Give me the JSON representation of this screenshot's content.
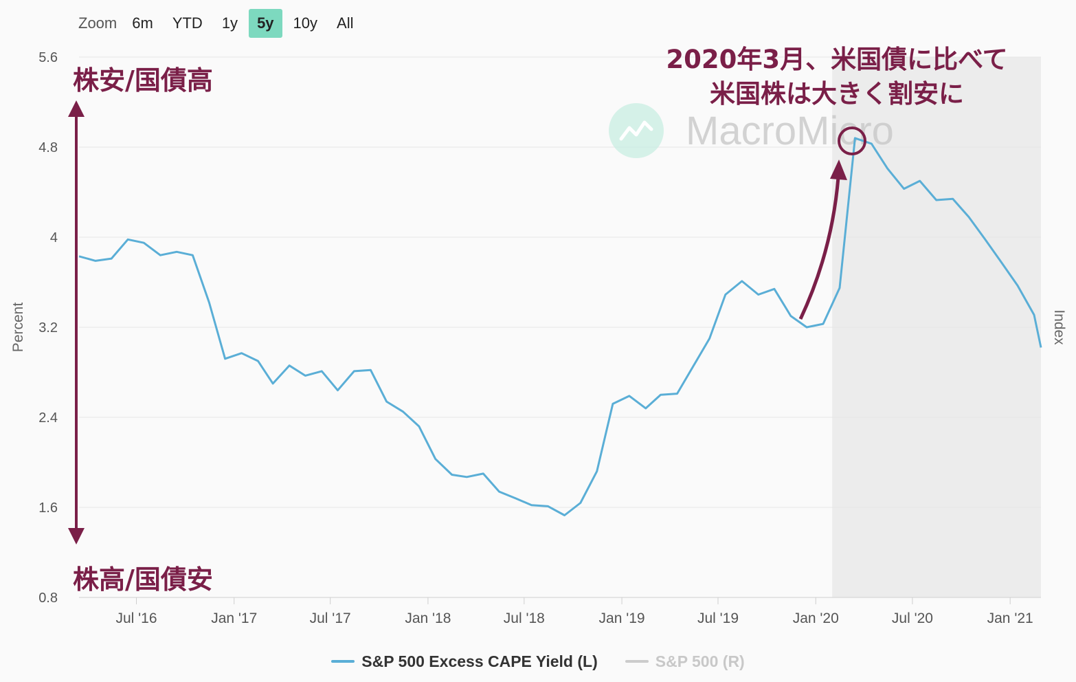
{
  "zoom": {
    "label": "Zoom",
    "buttons": [
      {
        "label": "6m",
        "active": false
      },
      {
        "label": "YTD",
        "active": false
      },
      {
        "label": "1y",
        "active": false
      },
      {
        "label": "5y",
        "active": true
      },
      {
        "label": "10y",
        "active": false
      },
      {
        "label": "All",
        "active": false
      }
    ]
  },
  "watermark": "MacroMicro",
  "annotations": {
    "top_left": "株安/国債高",
    "bottom_left": "株高/国債安",
    "callout_line1": "2020年3月、米国債に比べて",
    "callout_line2": "米国株は大きく割安に"
  },
  "colors": {
    "series_line": "#5aaed6",
    "annotation": "#7a1f48",
    "grid": "#e6e6e6",
    "recession_band": "#ececec",
    "legend_off": "#cccccc"
  },
  "chart_data": {
    "type": "line",
    "title": "",
    "ylabel": "Percent",
    "y2label": "Index",
    "ylim": [
      0.8,
      5.6
    ],
    "yticks": [
      "0.8",
      "1.6",
      "2.4",
      "3.2",
      "4",
      "4.8",
      "5.6"
    ],
    "xlim": [
      "2016-03-15",
      "2021-02-28"
    ],
    "xticks": [
      {
        "date": "2016-07-01",
        "label": "Jul '16"
      },
      {
        "date": "2017-01-01",
        "label": "Jan '17"
      },
      {
        "date": "2017-07-01",
        "label": "Jul '17"
      },
      {
        "date": "2018-01-01",
        "label": "Jan '18"
      },
      {
        "date": "2018-07-01",
        "label": "Jul '18"
      },
      {
        "date": "2019-01-01",
        "label": "Jan '19"
      },
      {
        "date": "2019-07-01",
        "label": "Jul '19"
      },
      {
        "date": "2020-01-01",
        "label": "Jan '20"
      },
      {
        "date": "2020-07-01",
        "label": "Jul '20"
      },
      {
        "date": "2021-01-01",
        "label": "Jan '21"
      }
    ],
    "shaded_region": [
      "2020-02-01",
      "2021-02-28"
    ],
    "series": [
      {
        "name": "S&P 500 Excess CAPE Yield (L)",
        "visible": true,
        "dates": [
          "2016-03-15",
          "2016-04-15",
          "2016-05-15",
          "2016-06-15",
          "2016-07-15",
          "2016-08-15",
          "2016-09-15",
          "2016-10-15",
          "2016-11-15",
          "2016-12-15",
          "2017-01-15",
          "2017-02-15",
          "2017-03-15",
          "2017-04-15",
          "2017-05-15",
          "2017-06-15",
          "2017-07-15",
          "2017-08-15",
          "2017-09-15",
          "2017-10-15",
          "2017-11-15",
          "2017-12-15",
          "2018-01-15",
          "2018-02-15",
          "2018-03-15",
          "2018-04-15",
          "2018-05-15",
          "2018-06-15",
          "2018-07-15",
          "2018-08-15",
          "2018-09-15",
          "2018-10-15",
          "2018-11-15",
          "2018-12-15",
          "2019-01-15",
          "2019-02-15",
          "2019-03-15",
          "2019-04-15",
          "2019-05-15",
          "2019-06-15",
          "2019-07-15",
          "2019-08-15",
          "2019-09-15",
          "2019-10-15",
          "2019-11-15",
          "2019-12-15",
          "2020-01-15",
          "2020-02-15",
          "2020-03-15",
          "2020-04-15",
          "2020-05-15",
          "2020-06-15",
          "2020-07-15",
          "2020-08-15",
          "2020-09-15",
          "2020-10-15",
          "2020-11-15",
          "2020-12-15",
          "2021-01-15",
          "2021-02-15",
          "2021-02-28"
        ],
        "values": [
          3.83,
          3.79,
          3.81,
          3.98,
          3.95,
          3.84,
          3.87,
          3.84,
          3.42,
          2.92,
          2.97,
          2.9,
          2.7,
          2.86,
          2.77,
          2.81,
          2.64,
          2.81,
          2.82,
          2.54,
          2.45,
          2.32,
          2.03,
          1.89,
          1.87,
          1.9,
          1.74,
          1.68,
          1.62,
          1.61,
          1.53,
          1.64,
          1.92,
          2.52,
          2.59,
          2.48,
          2.6,
          2.61,
          2.85,
          3.1,
          3.49,
          3.61,
          3.49,
          3.54,
          3.3,
          3.2,
          3.23,
          3.55,
          4.88,
          4.83,
          4.61,
          4.43,
          4.5,
          4.33,
          4.34,
          4.18,
          3.98,
          3.78,
          3.57,
          3.31,
          3.02
        ]
      },
      {
        "name": "S&P 500 (R)",
        "visible": false,
        "values": []
      }
    ],
    "legend": [
      "S&P 500 Excess CAPE Yield (L)",
      "S&P 500 (R)"
    ],
    "legend_position": "bottom"
  }
}
